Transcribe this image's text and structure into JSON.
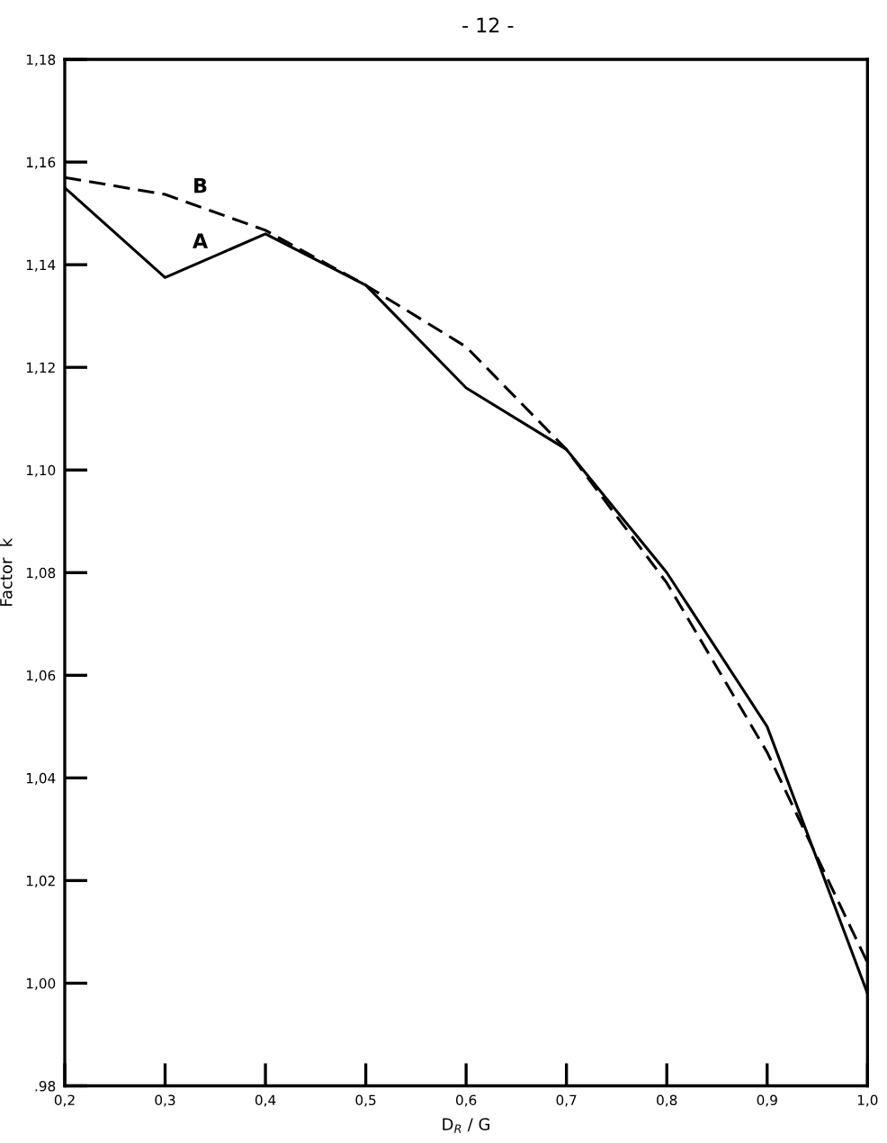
{
  "chart_data": {
    "type": "line",
    "annotations": [
      "- 12 -"
    ],
    "xlabel": "D$_{R}$ / G",
    "ylabel": "Factor  k",
    "x": [
      0.2,
      0.3,
      0.4,
      0.5,
      0.6,
      0.7,
      0.8,
      0.9,
      1.0
    ],
    "series": [
      {
        "name": "A",
        "color": "#000000",
        "line_style": "solid",
        "values": [
          1.155,
          1.1375,
          1.146,
          1.136,
          1.116,
          1.104,
          1.08,
          1.05,
          0.998
        ]
      },
      {
        "name": "B",
        "color": "#000000",
        "line_style": "dashed",
        "values": [
          1.157,
          1.1537,
          1.1467,
          1.136,
          1.124,
          1.104,
          1.078,
          1.045,
          1.004
        ]
      }
    ],
    "xlim": [
      0.2,
      1.0
    ],
    "ylim": [
      0.98,
      1.18
    ],
    "xticks": [
      {
        "value": 0.2,
        "label": "0,2"
      },
      {
        "value": 0.3,
        "label": "0,3"
      },
      {
        "value": 0.4,
        "label": "0,4"
      },
      {
        "value": 0.5,
        "label": "0,5"
      },
      {
        "value": 0.6,
        "label": "0,6"
      },
      {
        "value": 0.7,
        "label": "0,7"
      },
      {
        "value": 0.8,
        "label": "0,8"
      },
      {
        "value": 0.9,
        "label": "0,9"
      },
      {
        "value": 1.0,
        "label": "1,0"
      }
    ],
    "yticks": [
      {
        "value": 0.98,
        "label": ".98"
      },
      {
        "value": 1.0,
        "label": "1,00"
      },
      {
        "value": 1.02,
        "label": "1,02"
      },
      {
        "value": 1.04,
        "label": "1,04"
      },
      {
        "value": 1.06,
        "label": "1,06"
      },
      {
        "value": 1.08,
        "label": "1,08"
      },
      {
        "value": 1.1,
        "label": "1,10"
      },
      {
        "value": 1.12,
        "label": "1,12"
      },
      {
        "value": 1.14,
        "label": "1,14"
      },
      {
        "value": 1.16,
        "label": "1,16"
      },
      {
        "value": 1.18,
        "label": "1,18"
      }
    ],
    "grid": false,
    "legend": false,
    "marker": "none"
  }
}
